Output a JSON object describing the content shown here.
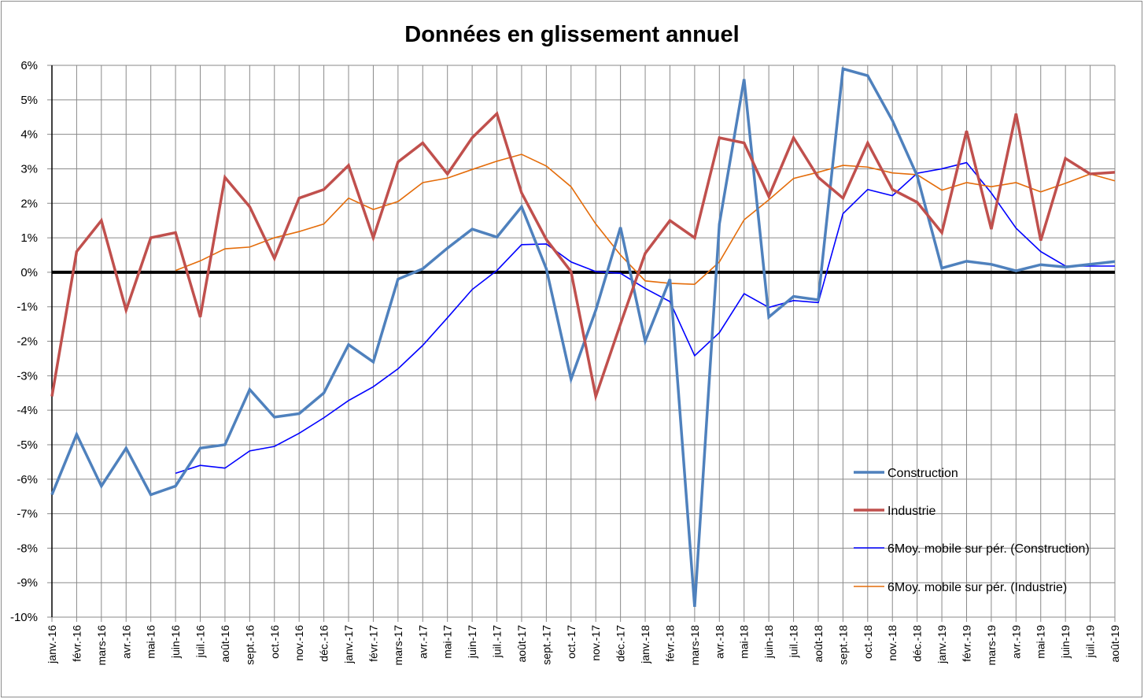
{
  "chart_data": {
    "type": "line",
    "title": "Données en glissement annuel",
    "xlabel": "",
    "ylabel": "",
    "ylim": [
      -10,
      6
    ],
    "y_ticks": [
      "6%",
      "5%",
      "4%",
      "3%",
      "2%",
      "1%",
      "0%",
      "-1%",
      "-2%",
      "-3%",
      "-4%",
      "-5%",
      "-6%",
      "-7%",
      "-8%",
      "-9%",
      "-10%"
    ],
    "grid": true,
    "legend_position": "bottom-right",
    "categories": [
      "janv.-16",
      "févr.-16",
      "mars-16",
      "avr.-16",
      "mai-16",
      "juin-16",
      "juil.-16",
      "août-16",
      "sept.-16",
      "oct.-16",
      "nov.-16",
      "déc.-16",
      "janv.-17",
      "févr.-17",
      "mars-17",
      "avr.-17",
      "mai-17",
      "juin-17",
      "juil.-17",
      "août-17",
      "sept.-17",
      "oct.-17",
      "nov.-17",
      "déc.-17",
      "janv.-18",
      "févr.-18",
      "mars-18",
      "avr.-18",
      "mai-18",
      "juin-18",
      "juil.-18",
      "août-18",
      "sept.-18",
      "oct.-18",
      "nov.-18",
      "déc.-18",
      "janv.-19",
      "févr.-19",
      "mars-19",
      "avr.-19",
      "mai-19",
      "juin-19",
      "juil.-19",
      "août-19"
    ],
    "series": [
      {
        "name": "Construction",
        "color": "#4f81bd",
        "width": 3.5,
        "values": [
          -6.45,
          -4.7,
          -6.2,
          -5.1,
          -6.45,
          -6.2,
          -5.1,
          -5.0,
          -3.4,
          -4.2,
          -4.1,
          -3.5,
          -2.1,
          -2.6,
          -0.2,
          0.1,
          0.7,
          1.25,
          1.02,
          1.9,
          0.1,
          -3.1,
          -1.1,
          1.3,
          -2.0,
          -0.2,
          -9.7,
          1.4,
          5.6,
          -1.3,
          -0.7,
          -0.8,
          5.9,
          5.7,
          4.4,
          2.8,
          0.12,
          0.32,
          0.23,
          0.04,
          0.22,
          0.15,
          0.23,
          0.31
        ]
      },
      {
        "name": "Industrie",
        "color": "#c0504d",
        "width": 3.5,
        "values": [
          -3.6,
          0.6,
          1.5,
          -1.1,
          1.0,
          1.15,
          -1.3,
          2.75,
          1.9,
          0.4,
          2.15,
          2.4,
          3.1,
          1.0,
          3.2,
          3.75,
          2.85,
          3.9,
          4.6,
          2.3,
          0.95,
          0.02,
          -3.6,
          -1.5,
          0.55,
          1.5,
          1.0,
          3.9,
          3.75,
          2.2,
          3.9,
          2.75,
          2.15,
          3.75,
          2.4,
          2.03,
          1.15,
          4.1,
          1.25,
          4.6,
          0.92,
          3.3,
          2.85,
          2.9
        ]
      },
      {
        "name": "6Moy. mobile sur pér. (Construction)",
        "color": "#0000ff",
        "width": 1.6,
        "values": [
          null,
          null,
          null,
          null,
          null,
          -5.83,
          -5.6,
          -5.68,
          -5.18,
          -5.05,
          -4.67,
          -4.22,
          -3.72,
          -3.32,
          -2.8,
          -2.12,
          -1.32,
          -0.5,
          0.05,
          0.8,
          0.82,
          0.3,
          0.02,
          -0.03,
          -0.47,
          -0.85,
          -2.42,
          -1.75,
          -0.62,
          -1.02,
          -0.82,
          -0.88,
          1.7,
          2.4,
          2.22,
          2.87,
          3.0,
          3.18,
          2.3,
          1.28,
          0.6,
          0.18,
          0.18,
          0.18
        ]
      },
      {
        "name": "6Moy. mobile sur pér. (Industrie)",
        "color": "#e46c0a",
        "width": 1.6,
        "values": [
          null,
          null,
          null,
          null,
          null,
          0.05,
          0.33,
          0.68,
          0.73,
          1.0,
          1.18,
          1.4,
          2.15,
          1.82,
          2.05,
          2.6,
          2.73,
          2.98,
          3.22,
          3.42,
          3.08,
          2.48,
          1.4,
          0.5,
          -0.25,
          -0.32,
          -0.35,
          0.3,
          1.52,
          2.1,
          2.72,
          2.9,
          3.1,
          3.05,
          2.88,
          2.83,
          2.38,
          2.6,
          2.48,
          2.6,
          2.33,
          2.58,
          2.85,
          2.65
        ]
      }
    ]
  }
}
